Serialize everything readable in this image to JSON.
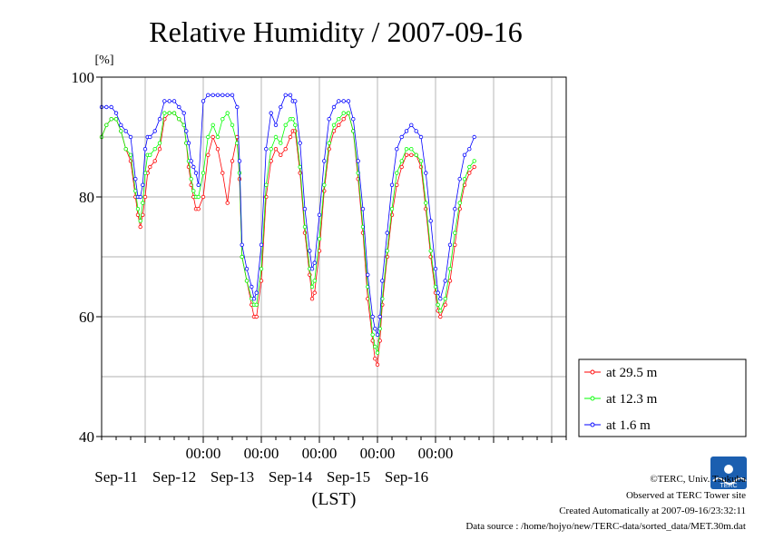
{
  "chart_data": {
    "type": "line",
    "title": "Relative Humidity / 2007-09-16",
    "ylabel": "[%]",
    "xlabel": "(LST)",
    "ylim": [
      40,
      100
    ],
    "yticks": [
      40,
      60,
      80,
      100
    ],
    "xlim_hours": [
      -18,
      174
    ],
    "xtick_labels": [
      "00:00",
      "00:00",
      "00:00",
      "00:00",
      "00:00"
    ],
    "day_labels": [
      "Sep-11",
      "Sep-12",
      "Sep-13",
      "Sep-14",
      "Sep-15",
      "Sep-16"
    ],
    "grid": true,
    "legend_position": "right",
    "series": [
      {
        "name": "at 29.5 m",
        "color": "#ff0000",
        "points": [
          [
            -18,
            90
          ],
          [
            -16,
            92
          ],
          [
            -14,
            93
          ],
          [
            -12,
            93
          ],
          [
            -10,
            91
          ],
          [
            -8,
            88
          ],
          [
            -6,
            86
          ],
          [
            -4,
            80
          ],
          [
            -3,
            77
          ],
          [
            -2,
            75
          ],
          [
            -1,
            77
          ],
          [
            0,
            80
          ],
          [
            1,
            84
          ],
          [
            2,
            85
          ],
          [
            4,
            86
          ],
          [
            6,
            88
          ],
          [
            8,
            93
          ],
          [
            10,
            94
          ],
          [
            12,
            94
          ],
          [
            14,
            93
          ],
          [
            16,
            92
          ],
          [
            17,
            89
          ],
          [
            18,
            85
          ],
          [
            19,
            82
          ],
          [
            20,
            80
          ],
          [
            21,
            78
          ],
          [
            22,
            78
          ],
          [
            24,
            80
          ],
          [
            26,
            87
          ],
          [
            28,
            90
          ],
          [
            30,
            88
          ],
          [
            32,
            84
          ],
          [
            34,
            79
          ],
          [
            36,
            86
          ],
          [
            38,
            90
          ],
          [
            39,
            83
          ],
          [
            40,
            70
          ],
          [
            42,
            66
          ],
          [
            44,
            62
          ],
          [
            45,
            60
          ],
          [
            46,
            60
          ],
          [
            48,
            66
          ],
          [
            50,
            80
          ],
          [
            52,
            86
          ],
          [
            54,
            88
          ],
          [
            56,
            87
          ],
          [
            58,
            88
          ],
          [
            60,
            90
          ],
          [
            61,
            91
          ],
          [
            62,
            91
          ],
          [
            64,
            84
          ],
          [
            66,
            74
          ],
          [
            68,
            67
          ],
          [
            69,
            63
          ],
          [
            70,
            64
          ],
          [
            72,
            71
          ],
          [
            74,
            81
          ],
          [
            76,
            88
          ],
          [
            78,
            91
          ],
          [
            80,
            92
          ],
          [
            82,
            93
          ],
          [
            84,
            94
          ],
          [
            86,
            91
          ],
          [
            88,
            83
          ],
          [
            90,
            74
          ],
          [
            92,
            63
          ],
          [
            94,
            56
          ],
          [
            95,
            53
          ],
          [
            96,
            52
          ],
          [
            97,
            56
          ],
          [
            98,
            62
          ],
          [
            100,
            70
          ],
          [
            102,
            77
          ],
          [
            104,
            82
          ],
          [
            106,
            85
          ],
          [
            108,
            87
          ],
          [
            110,
            87
          ],
          [
            112,
            87
          ],
          [
            114,
            85
          ],
          [
            116,
            78
          ],
          [
            118,
            70
          ],
          [
            120,
            64
          ],
          [
            121,
            61
          ],
          [
            122,
            60
          ],
          [
            124,
            62
          ],
          [
            126,
            66
          ],
          [
            128,
            72
          ],
          [
            130,
            78
          ],
          [
            132,
            82
          ],
          [
            134,
            84
          ],
          [
            136,
            85
          ]
        ]
      },
      {
        "name": "at 12.3 m",
        "color": "#00ff00",
        "points": [
          [
            -18,
            90
          ],
          [
            -16,
            92
          ],
          [
            -14,
            93
          ],
          [
            -12,
            93
          ],
          [
            -10,
            91
          ],
          [
            -8,
            88
          ],
          [
            -6,
            87
          ],
          [
            -4,
            81
          ],
          [
            -3,
            78
          ],
          [
            -2,
            76
          ],
          [
            -1,
            79
          ],
          [
            0,
            84
          ],
          [
            1,
            87
          ],
          [
            2,
            87
          ],
          [
            4,
            88
          ],
          [
            6,
            89
          ],
          [
            8,
            94
          ],
          [
            10,
            94
          ],
          [
            12,
            94
          ],
          [
            14,
            93
          ],
          [
            16,
            92
          ],
          [
            17,
            89
          ],
          [
            18,
            86
          ],
          [
            19,
            83
          ],
          [
            20,
            81
          ],
          [
            21,
            80
          ],
          [
            22,
            80
          ],
          [
            24,
            84
          ],
          [
            26,
            90
          ],
          [
            28,
            92
          ],
          [
            30,
            90
          ],
          [
            32,
            93
          ],
          [
            34,
            94
          ],
          [
            36,
            92
          ],
          [
            38,
            89
          ],
          [
            39,
            84
          ],
          [
            40,
            70
          ],
          [
            42,
            66
          ],
          [
            44,
            63
          ],
          [
            45,
            62
          ],
          [
            46,
            62
          ],
          [
            48,
            68
          ],
          [
            50,
            82
          ],
          [
            52,
            88
          ],
          [
            54,
            90
          ],
          [
            56,
            89
          ],
          [
            58,
            92
          ],
          [
            60,
            93
          ],
          [
            61,
            93
          ],
          [
            62,
            92
          ],
          [
            64,
            85
          ],
          [
            66,
            75
          ],
          [
            68,
            68
          ],
          [
            69,
            65
          ],
          [
            70,
            66
          ],
          [
            72,
            73
          ],
          [
            74,
            82
          ],
          [
            76,
            89
          ],
          [
            78,
            92
          ],
          [
            80,
            93
          ],
          [
            82,
            94
          ],
          [
            84,
            94
          ],
          [
            86,
            91
          ],
          [
            88,
            84
          ],
          [
            90,
            75
          ],
          [
            92,
            65
          ],
          [
            94,
            57
          ],
          [
            95,
            55
          ],
          [
            96,
            54
          ],
          [
            97,
            58
          ],
          [
            98,
            63
          ],
          [
            100,
            71
          ],
          [
            102,
            78
          ],
          [
            104,
            84
          ],
          [
            106,
            86
          ],
          [
            108,
            88
          ],
          [
            110,
            88
          ],
          [
            112,
            87
          ],
          [
            114,
            86
          ],
          [
            116,
            79
          ],
          [
            118,
            71
          ],
          [
            120,
            65
          ],
          [
            121,
            62
          ],
          [
            122,
            61
          ],
          [
            124,
            63
          ],
          [
            126,
            68
          ],
          [
            128,
            74
          ],
          [
            130,
            79
          ],
          [
            132,
            83
          ],
          [
            134,
            85
          ],
          [
            136,
            86
          ]
        ]
      },
      {
        "name": "at 1.6 m",
        "color": "#0000ff",
        "points": [
          [
            -18,
            95
          ],
          [
            -16,
            95
          ],
          [
            -14,
            95
          ],
          [
            -12,
            94
          ],
          [
            -10,
            92
          ],
          [
            -8,
            91
          ],
          [
            -6,
            90
          ],
          [
            -4,
            83
          ],
          [
            -3,
            80
          ],
          [
            -2,
            80
          ],
          [
            -1,
            82
          ],
          [
            0,
            88
          ],
          [
            1,
            90
          ],
          [
            2,
            90
          ],
          [
            4,
            91
          ],
          [
            6,
            93
          ],
          [
            8,
            96
          ],
          [
            10,
            96
          ],
          [
            12,
            96
          ],
          [
            14,
            95
          ],
          [
            16,
            94
          ],
          [
            17,
            91
          ],
          [
            18,
            89
          ],
          [
            19,
            86
          ],
          [
            20,
            85
          ],
          [
            21,
            84
          ],
          [
            22,
            82
          ],
          [
            24,
            96
          ],
          [
            26,
            97
          ],
          [
            28,
            97
          ],
          [
            30,
            97
          ],
          [
            32,
            97
          ],
          [
            34,
            97
          ],
          [
            36,
            97
          ],
          [
            38,
            95
          ],
          [
            39,
            86
          ],
          [
            40,
            72
          ],
          [
            42,
            68
          ],
          [
            44,
            65
          ],
          [
            45,
            63
          ],
          [
            46,
            64
          ],
          [
            48,
            72
          ],
          [
            50,
            88
          ],
          [
            52,
            94
          ],
          [
            54,
            92
          ],
          [
            56,
            95
          ],
          [
            58,
            97
          ],
          [
            60,
            97
          ],
          [
            61,
            96
          ],
          [
            62,
            96
          ],
          [
            64,
            89
          ],
          [
            66,
            78
          ],
          [
            68,
            71
          ],
          [
            69,
            68
          ],
          [
            70,
            69
          ],
          [
            72,
            77
          ],
          [
            74,
            86
          ],
          [
            76,
            93
          ],
          [
            78,
            95
          ],
          [
            80,
            96
          ],
          [
            82,
            96
          ],
          [
            84,
            96
          ],
          [
            86,
            93
          ],
          [
            88,
            86
          ],
          [
            90,
            78
          ],
          [
            92,
            67
          ],
          [
            94,
            60
          ],
          [
            95,
            58
          ],
          [
            96,
            57
          ],
          [
            97,
            60
          ],
          [
            98,
            66
          ],
          [
            100,
            74
          ],
          [
            102,
            82
          ],
          [
            104,
            88
          ],
          [
            106,
            90
          ],
          [
            108,
            91
          ],
          [
            110,
            92
          ],
          [
            112,
            91
          ],
          [
            114,
            90
          ],
          [
            116,
            84
          ],
          [
            118,
            76
          ],
          [
            120,
            68
          ],
          [
            121,
            64
          ],
          [
            122,
            63
          ],
          [
            124,
            66
          ],
          [
            126,
            72
          ],
          [
            128,
            78
          ],
          [
            130,
            83
          ],
          [
            132,
            87
          ],
          [
            134,
            88
          ],
          [
            136,
            90
          ]
        ]
      }
    ]
  },
  "credits": {
    "copyright": "©TERC, Univ. Tsukuba",
    "observed": "Observed at TERC Tower site",
    "created": "Created Automatically at 2007-09-16/23:32:11",
    "source": "Data source : /home/hojyo/new/TERC-data/sorted_data/MET.30m.dat",
    "logo_text": "TERC"
  }
}
